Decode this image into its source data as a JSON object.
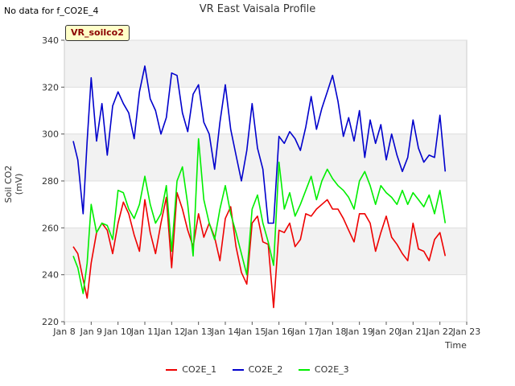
{
  "nodata_text": "No data for f_CO2E_4",
  "station_tag": "VR_soilco2",
  "chart_data": {
    "type": "line",
    "title": "VR East Vaisala Profile",
    "xlabel": "Time",
    "ylabel": "Soil CO2 (mV)",
    "xlim": [
      8,
      23
    ],
    "ylim": [
      220,
      340
    ],
    "x_ticks": [
      8,
      9,
      10,
      11,
      12,
      13,
      14,
      15,
      16,
      17,
      18,
      19,
      20,
      21,
      22,
      23
    ],
    "x_tick_labels": [
      "Jan 8",
      "Jan 9",
      "Jan 10",
      "Jan 11",
      "Jan 12",
      "Jan 13",
      "Jan 14",
      "Jan 15",
      "Jan 16",
      "Jan 17",
      "Jan 18",
      "Jan 19",
      "Jan 20",
      "Jan 21",
      "Jan 22",
      "Jan 23"
    ],
    "y_ticks": [
      220,
      240,
      260,
      280,
      300,
      320,
      340
    ],
    "y_tick_labels": [
      "220",
      "240",
      "260",
      "280",
      "300",
      "320",
      "340"
    ],
    "grid": true,
    "legend_position": "bottom",
    "series": [
      {
        "name": "CO2E_1",
        "color": "#ee0000",
        "x": [
          8.33,
          8.5,
          8.7,
          8.85,
          9.0,
          9.2,
          9.4,
          9.6,
          9.8,
          10.0,
          10.2,
          10.4,
          10.6,
          10.8,
          11.0,
          11.2,
          11.4,
          11.6,
          11.8,
          12.0,
          12.2,
          12.4,
          12.6,
          12.8,
          13.0,
          13.2,
          13.4,
          13.6,
          13.8,
          14.0,
          14.2,
          14.4,
          14.6,
          14.8,
          15.0,
          15.2,
          15.4,
          15.6,
          15.8,
          16.0,
          16.2,
          16.4,
          16.6,
          16.8,
          17.0,
          17.2,
          17.4,
          17.6,
          17.8,
          18.0,
          18.2,
          18.4,
          18.6,
          18.8,
          19.0,
          19.2,
          19.4,
          19.6,
          19.8,
          20.0,
          20.2,
          20.4,
          20.6,
          20.8,
          21.0,
          21.2,
          21.4,
          21.6,
          21.8,
          22.0,
          22.2
        ],
        "y": [
          252,
          249,
          238,
          230,
          245,
          258,
          262,
          259,
          249,
          262,
          271,
          266,
          257,
          250,
          272,
          258,
          249,
          262,
          273,
          243,
          275,
          268,
          259,
          252,
          266,
          256,
          262,
          256,
          246,
          264,
          269,
          252,
          241,
          236,
          262,
          265,
          254,
          253,
          226,
          259,
          258,
          262,
          252,
          255,
          266,
          265,
          268,
          270,
          272,
          268,
          268,
          264,
          259,
          254,
          266,
          266,
          262,
          250,
          258,
          265,
          256,
          253,
          249,
          246,
          262,
          251,
          250,
          246,
          255,
          258,
          248
        ]
      },
      {
        "name": "CO2E_2",
        "color": "#0000cc",
        "x": [
          8.33,
          8.5,
          8.7,
          8.85,
          9.0,
          9.2,
          9.4,
          9.6,
          9.8,
          10.0,
          10.2,
          10.4,
          10.6,
          10.8,
          11.0,
          11.2,
          11.4,
          11.6,
          11.8,
          12.0,
          12.2,
          12.4,
          12.6,
          12.8,
          13.0,
          13.2,
          13.4,
          13.6,
          13.8,
          14.0,
          14.2,
          14.4,
          14.6,
          14.8,
          15.0,
          15.2,
          15.4,
          15.6,
          15.8,
          16.0,
          16.2,
          16.4,
          16.6,
          16.8,
          17.0,
          17.2,
          17.4,
          17.6,
          17.8,
          18.0,
          18.2,
          18.4,
          18.6,
          18.8,
          19.0,
          19.2,
          19.4,
          19.6,
          19.8,
          20.0,
          20.2,
          20.4,
          20.6,
          20.8,
          21.0,
          21.2,
          21.4,
          21.6,
          21.8,
          22.0,
          22.2
        ],
        "y": [
          297,
          289,
          266,
          297,
          324,
          297,
          313,
          291,
          312,
          318,
          313,
          309,
          298,
          318,
          329,
          315,
          310,
          300,
          307,
          326,
          325,
          309,
          301,
          317,
          321,
          305,
          300,
          285,
          305,
          321,
          302,
          291,
          280,
          293,
          313,
          294,
          285,
          262,
          262,
          299,
          296,
          301,
          298,
          293,
          303,
          316,
          302,
          311,
          318,
          325,
          314,
          299,
          307,
          297,
          310,
          290,
          306,
          296,
          304,
          289,
          300,
          291,
          284,
          290,
          306,
          294,
          288,
          291,
          290,
          308,
          284
        ]
      },
      {
        "name": "CO2E_3",
        "color": "#00ee00",
        "x": [
          8.33,
          8.5,
          8.7,
          8.85,
          9.0,
          9.2,
          9.4,
          9.6,
          9.8,
          10.0,
          10.2,
          10.4,
          10.6,
          10.8,
          11.0,
          11.2,
          11.4,
          11.6,
          11.8,
          12.0,
          12.2,
          12.4,
          12.6,
          12.8,
          13.0,
          13.2,
          13.4,
          13.6,
          13.8,
          14.0,
          14.2,
          14.4,
          14.6,
          14.8,
          15.0,
          15.2,
          15.4,
          15.6,
          15.8,
          16.0,
          16.2,
          16.4,
          16.6,
          16.8,
          17.0,
          17.2,
          17.4,
          17.6,
          17.8,
          18.0,
          18.2,
          18.4,
          18.6,
          18.8,
          19.0,
          19.2,
          19.4,
          19.6,
          19.8,
          20.0,
          20.2,
          20.4,
          20.6,
          20.8,
          21.0,
          21.2,
          21.4,
          21.6,
          21.8,
          22.0,
          22.2
        ],
        "y": [
          248,
          243,
          232,
          245,
          270,
          258,
          262,
          261,
          255,
          276,
          275,
          268,
          264,
          270,
          282,
          270,
          262,
          266,
          278,
          250,
          280,
          286,
          270,
          248,
          298,
          272,
          262,
          255,
          268,
          278,
          266,
          258,
          249,
          240,
          268,
          274,
          262,
          254,
          244,
          288,
          268,
          275,
          265,
          270,
          276,
          282,
          272,
          280,
          285,
          281,
          278,
          276,
          273,
          268,
          280,
          284,
          278,
          270,
          278,
          275,
          273,
          270,
          276,
          270,
          275,
          272,
          269,
          274,
          266,
          276,
          262
        ]
      }
    ]
  }
}
